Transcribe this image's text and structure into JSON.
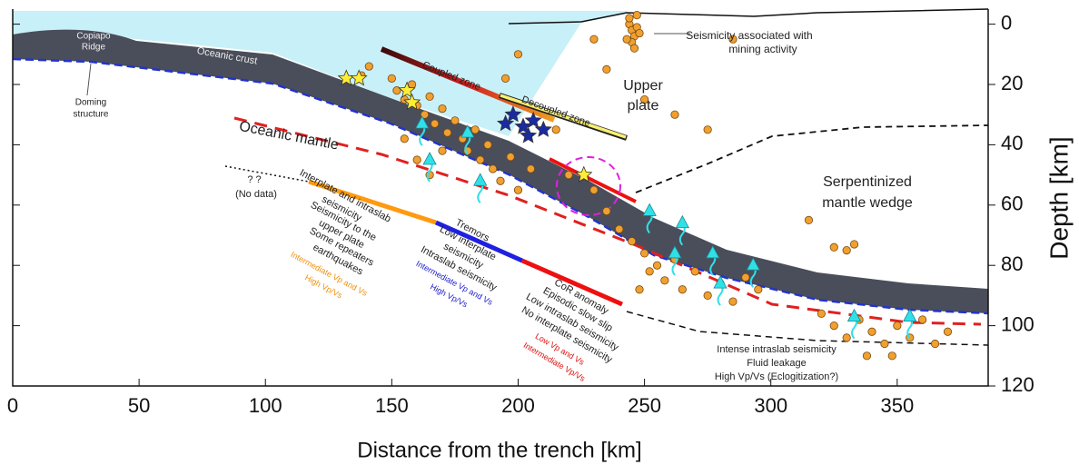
{
  "chart_data": {
    "type": "cross-section",
    "x_label": "Distance from the trench [km]",
    "y_label": "Depth [km]",
    "xlim": [
      0,
      386
    ],
    "ylim": [
      -5,
      120
    ],
    "y_inverted": true,
    "xticks": [
      0,
      50,
      100,
      150,
      200,
      250,
      300,
      350
    ],
    "yticks": [
      0,
      20,
      40,
      60,
      80,
      100,
      120
    ],
    "annotations": [
      "Copiapo",
      "Ridge",
      "Oceanic crust",
      "Doming",
      "structure",
      "Coupled zone",
      "Decoupled zone",
      "Seismicity associated with",
      "mining activity",
      "Upper",
      "plate",
      "Oceanic mantle",
      "? ?",
      "(No data)",
      "Serpentinized",
      "mantle wedge",
      "Interplate and intraslab",
      "seismicity",
      "Seismicity to the",
      "upper plate",
      "Some repeaters",
      "earthquakes",
      "Intermediate Vp and Vs",
      "High Vp/Vs",
      "Tremors",
      "Low interplate",
      "seismicity",
      "Intraslab seismicity",
      "Intermediate Vp and Vs",
      "High Vp/Vs",
      "CoR anomaly",
      "Episodic slow slip",
      "Low intraslab seismicity",
      "No interplate seismicity",
      "Low Vp and Vs",
      "Intermediate Vp/Vs",
      "Intense intraslab seismicity",
      "Fluid leakage",
      "High Vp/Vs (Eclogitization?)"
    ],
    "series": [
      {
        "marker": "circle",
        "color": "#f0a030",
        "x": [
          244,
          245,
          246,
          247,
          245,
          248,
          243,
          246,
          247,
          244,
          138,
          141,
          150,
          152,
          155,
          158,
          160,
          163,
          165,
          167,
          170,
          172,
          175,
          178,
          180,
          183,
          185,
          188,
          190,
          155,
          160,
          165,
          170,
          193,
          197,
          200,
          205,
          195,
          200,
          230,
          235,
          250,
          262,
          275,
          285,
          215,
          220,
          230,
          235,
          240,
          245,
          250,
          255,
          258,
          262,
          265,
          270,
          275,
          280,
          285,
          290,
          295,
          248,
          252,
          315,
          325,
          330,
          333,
          320,
          325,
          330,
          335,
          340,
          345,
          350,
          355,
          360,
          365,
          370,
          338,
          348
        ],
        "y": [
          0,
          2,
          4,
          1,
          6,
          3,
          5,
          8,
          -3,
          -2,
          17,
          14,
          18,
          22,
          25,
          20,
          27,
          30,
          24,
          33,
          28,
          36,
          32,
          38,
          42,
          35,
          45,
          40,
          48,
          38,
          45,
          50,
          42,
          52,
          44,
          55,
          48,
          18,
          10,
          5,
          15,
          25,
          30,
          35,
          5,
          35,
          50,
          55,
          62,
          68,
          72,
          76,
          80,
          85,
          78,
          88,
          82,
          90,
          86,
          92,
          84,
          88,
          88,
          82,
          65,
          74,
          75,
          73,
          96,
          100,
          104,
          98,
          102,
          106,
          100,
          104,
          98,
          106,
          102,
          110,
          110
        ]
      },
      {
        "marker": "star",
        "color": "#ffee33",
        "x": [
          132,
          137,
          156,
          158,
          226
        ],
        "y": [
          18,
          18,
          22,
          26,
          50
        ]
      },
      {
        "marker": "star",
        "color": "#1a2aa0",
        "x": [
          195,
          198,
          202,
          206,
          210,
          204
        ],
        "y": [
          33,
          30,
          34,
          32,
          35,
          37
        ]
      },
      {
        "marker": "triangle",
        "color": "#30e0e8",
        "x": [
          162,
          180,
          165,
          185,
          252,
          265,
          262,
          277,
          280,
          293,
          333,
          355
        ],
        "y": [
          33,
          36,
          45,
          52,
          62,
          66,
          76,
          76,
          86,
          80,
          97,
          97
        ]
      }
    ]
  }
}
